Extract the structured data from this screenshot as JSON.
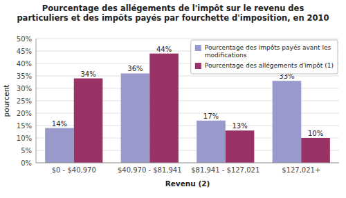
{
  "chart_data": {
    "type": "bar",
    "title": "Pourcentage des allégements de l'impôt sur le revenu des\nparticuliers et des impôts payés par fourchette d'imposition, en 2010",
    "xlabel": "Revenu (2)",
    "ylabel": "pourcent",
    "categories": [
      "$0 - $40,970",
      "$40,970 - $81,941",
      "$81,941 - $127,021",
      "$127,021+"
    ],
    "series": [
      {
        "name": "Pourcentage des impôts payés avant les\nmodifications",
        "color": "#9999cc",
        "values": [
          14,
          36,
          17,
          33
        ],
        "value_labels": [
          "14%",
          "36%",
          "17%",
          "33%"
        ]
      },
      {
        "name": "Pourcentage des allégements d'impôt (1)",
        "color": "#993366",
        "values": [
          34,
          44,
          13,
          10
        ],
        "value_labels": [
          "34%",
          "44%",
          "13%",
          "10%"
        ]
      }
    ],
    "ylim": [
      0,
      50
    ],
    "yticks": [
      {
        "value": 0,
        "label": "0%"
      },
      {
        "value": 5,
        "label": "5%"
      },
      {
        "value": 10,
        "label": "10%"
      },
      {
        "value": 15,
        "label": "15%"
      },
      {
        "value": 20,
        "label": "20%"
      },
      {
        "value": 25,
        "label": "25%"
      },
      {
        "value": 30,
        "label": "30%"
      },
      {
        "value": 35,
        "label": "35%"
      },
      {
        "value": 40,
        "label": "40%"
      },
      {
        "value": 45,
        "label": "45%"
      },
      {
        "value": 50,
        "label": "50%"
      }
    ],
    "grid": true,
    "legend": "upper right",
    "data_labels": true
  }
}
